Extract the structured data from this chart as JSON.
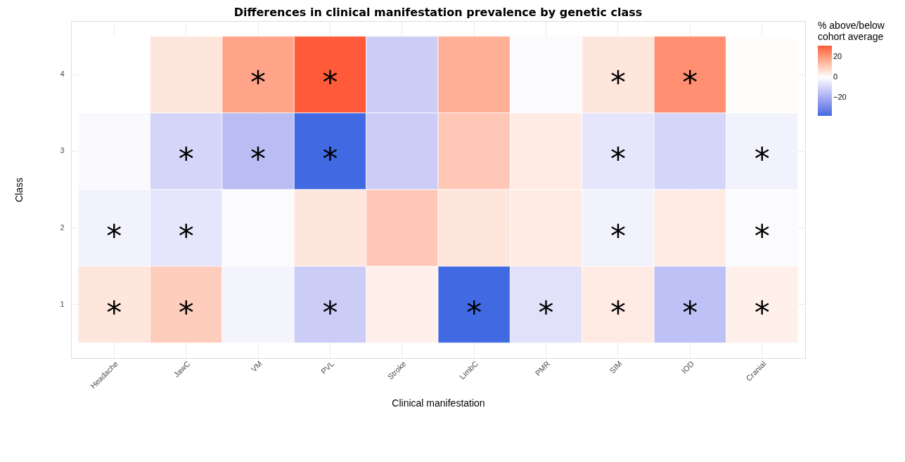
{
  "chart_data": {
    "type": "heatmap",
    "title": "Differences in clinical manifestation prevalence by genetic class",
    "xlabel": "Clinical manifestation",
    "ylabel": "Class",
    "legend_title": "% above/below\ncohort average",
    "grid": true,
    "categories": [
      "Headache",
      "JawC",
      "VM",
      "PVL",
      "Stroke",
      "LimbC",
      "PMR",
      "SIM",
      "IOD",
      "Cranial"
    ],
    "y_categories": [
      "4",
      "3",
      "2",
      "1"
    ],
    "cells": [
      [
        0,
        5,
        18,
        31,
        -12,
        16,
        -1,
        5,
        22,
        0.5
      ],
      [
        -1.5,
        -10,
        -16,
        -38,
        -12,
        11,
        4,
        -6,
        -10,
        -3
      ],
      [
        -3,
        -6,
        -1,
        5,
        11,
        5,
        4,
        -3,
        4,
        -1
      ],
      [
        5,
        10,
        -2.5,
        -12,
        3,
        -38,
        -7,
        4,
        -15,
        3
      ]
    ],
    "cell_labels": [
      [
        null,
        null,
        "*",
        "*",
        null,
        null,
        null,
        "*",
        "*",
        null
      ],
      [
        null,
        "*",
        "*",
        "*",
        null,
        null,
        null,
        "*",
        null,
        "*"
      ],
      [
        "*",
        "*",
        null,
        null,
        null,
        null,
        null,
        "*",
        null,
        "*"
      ],
      [
        "*",
        "*",
        null,
        "*",
        null,
        "*",
        "*",
        "*",
        "*",
        "*"
      ]
    ],
    "clim": [
      -38,
      31
    ],
    "cticks": [
      -20,
      0,
      20
    ],
    "colors": [
      "#4169e1",
      "#ffffff",
      "#ff5a3a"
    ]
  }
}
